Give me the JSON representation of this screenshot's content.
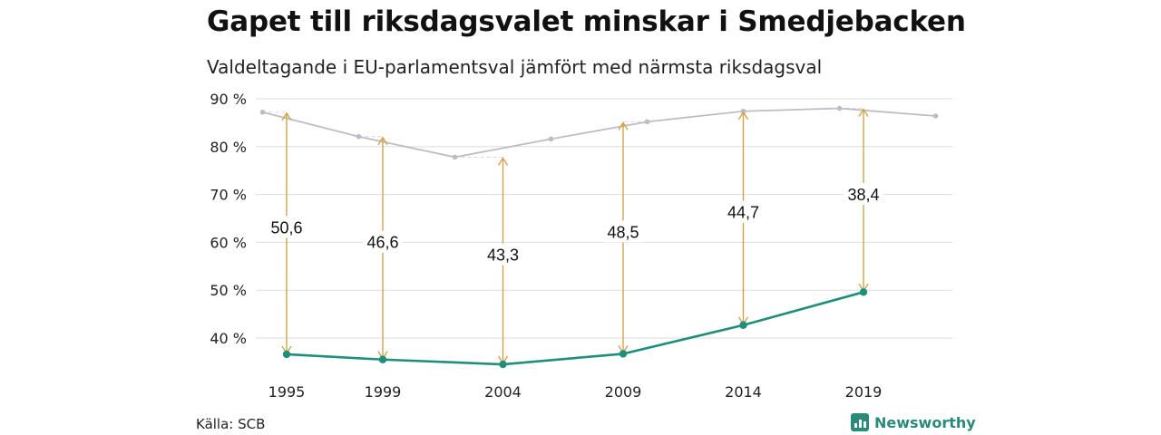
{
  "header": {
    "title": "Gapet till riksdagsvalet minskar i Smedjebacken",
    "subtitle": "Valdeltagande i EU-parlamentsval jämfört med närmsta riksdagsval"
  },
  "footer": {
    "source": "Källa: SCB",
    "brand": "Newsworthy"
  },
  "colors": {
    "riksdag_line": "#bdbdc7",
    "eu_line": "#1f8f7c",
    "arrows": "#d4a24c",
    "grid": "#dddddd"
  },
  "chart_data": {
    "type": "line",
    "title": "Gapet till riksdagsvalet minskar i Smedjebacken",
    "subtitle": "Valdeltagande i EU-parlamentsval jämfört med närmsta riksdagsval",
    "xlabel": "",
    "ylabel": "",
    "ylim": [
      35,
      90
    ],
    "yticks": [
      40,
      50,
      60,
      70,
      80,
      90
    ],
    "ytick_labels": [
      "40 %",
      "50 %",
      "60 %",
      "70 %",
      "80 %",
      "90 %"
    ],
    "xticks": [
      1995,
      1999,
      2004,
      2009,
      2014,
      2019
    ],
    "xlim": [
      1994.5,
      2022.5
    ],
    "grid": true,
    "series": [
      {
        "x": [
          1994,
          1998,
          2002,
          2006,
          2010,
          2014,
          2018,
          2022
        ],
        "values": [
          87.2,
          82.1,
          77.8,
          81.6,
          85.2,
          87.4,
          88.0,
          86.4
        ]
      },
      {
        "x": [
          1995,
          1999,
          2004,
          2009,
          2014,
          2019
        ],
        "values": [
          36.6,
          35.5,
          34.5,
          36.7,
          42.7,
          49.6
        ]
      }
    ],
    "gaps": [
      {
        "x": 1995,
        "eu": 36.6,
        "riks": 87.2,
        "label": "50,6"
      },
      {
        "x": 1999,
        "eu": 35.5,
        "riks": 82.1,
        "label": "46,6"
      },
      {
        "x": 2004,
        "eu": 34.5,
        "riks": 77.8,
        "label": "43,3"
      },
      {
        "x": 2009,
        "eu": 36.7,
        "riks": 85.2,
        "label": "48,5"
      },
      {
        "x": 2014,
        "eu": 42.7,
        "riks": 87.4,
        "label": "44,7"
      },
      {
        "x": 2019,
        "eu": 49.6,
        "riks": 88.0,
        "label": "38,4"
      }
    ]
  }
}
